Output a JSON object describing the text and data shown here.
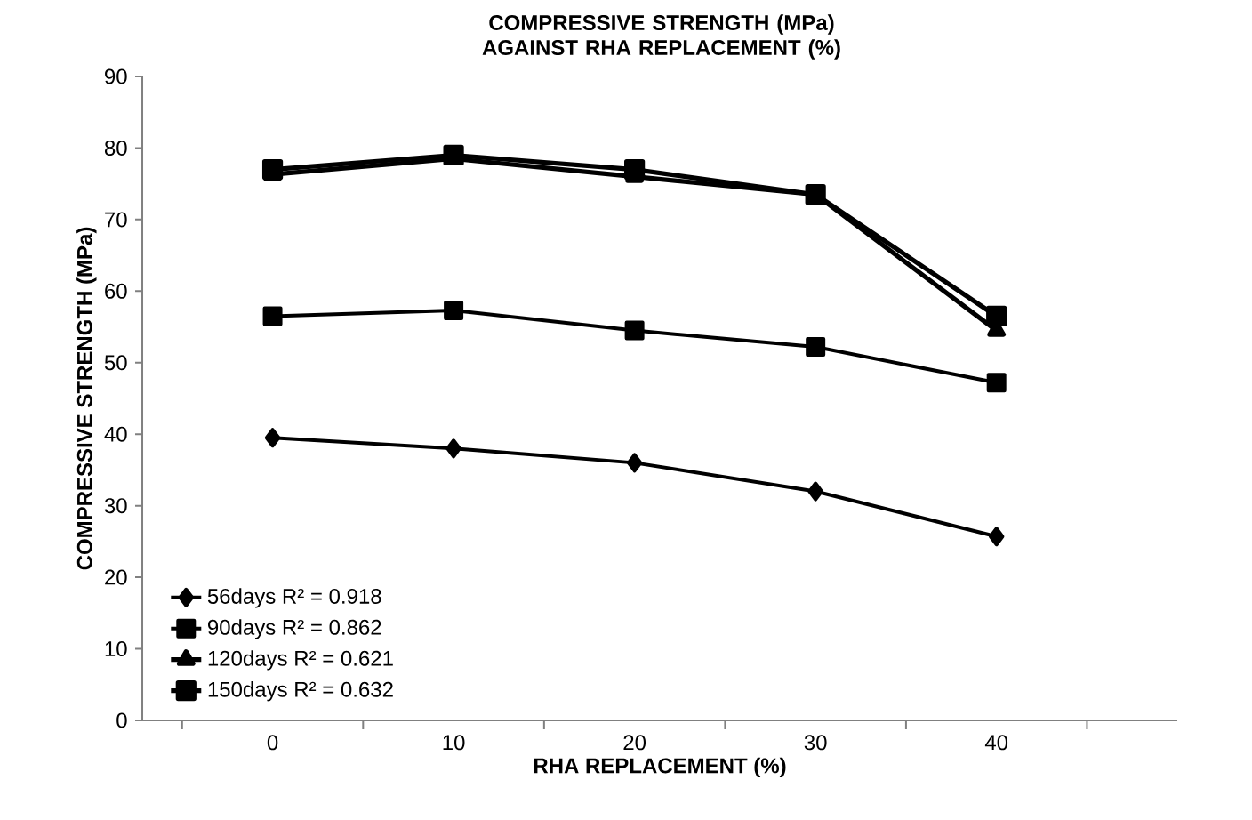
{
  "chart_data": {
    "type": "line",
    "title": "COMPRESSIVE STRENGTH (MPa) AGAINST RHA REPLACEMENT (%)",
    "xlabel": "RHA REPLACEMENT (%)",
    "ylabel": "COMPRESSIVE STRENGTH (MPa)",
    "categories": [
      "0",
      "10",
      "20",
      "30",
      "40"
    ],
    "series": [
      {
        "name": "56days    R² = 0.918",
        "color": "#000000",
        "marker": "diamond",
        "values": [
          39.5,
          38,
          36,
          32,
          25.7
        ]
      },
      {
        "name": "90days    R² = 0.862",
        "color": "#000000",
        "marker": "square",
        "values": [
          56.5,
          57.3,
          54.5,
          52.2,
          47.2
        ]
      },
      {
        "name": "120days  R² = 0.621",
        "color": "#000000",
        "marker": "triangle",
        "values": [
          76.3,
          78.5,
          76,
          73.5,
          54.5
        ]
      },
      {
        "name": "150days  R² = 0.632",
        "color": "#000000",
        "marker": "square",
        "values": [
          77,
          79,
          77,
          73.5,
          56.5
        ]
      }
    ],
    "ylim": [
      0,
      90
    ],
    "yticks": [
      0,
      10,
      20,
      30,
      40,
      50,
      60,
      70,
      80,
      90
    ],
    "grid": false,
    "legend": "bottom left",
    "line_style": "solid"
  }
}
